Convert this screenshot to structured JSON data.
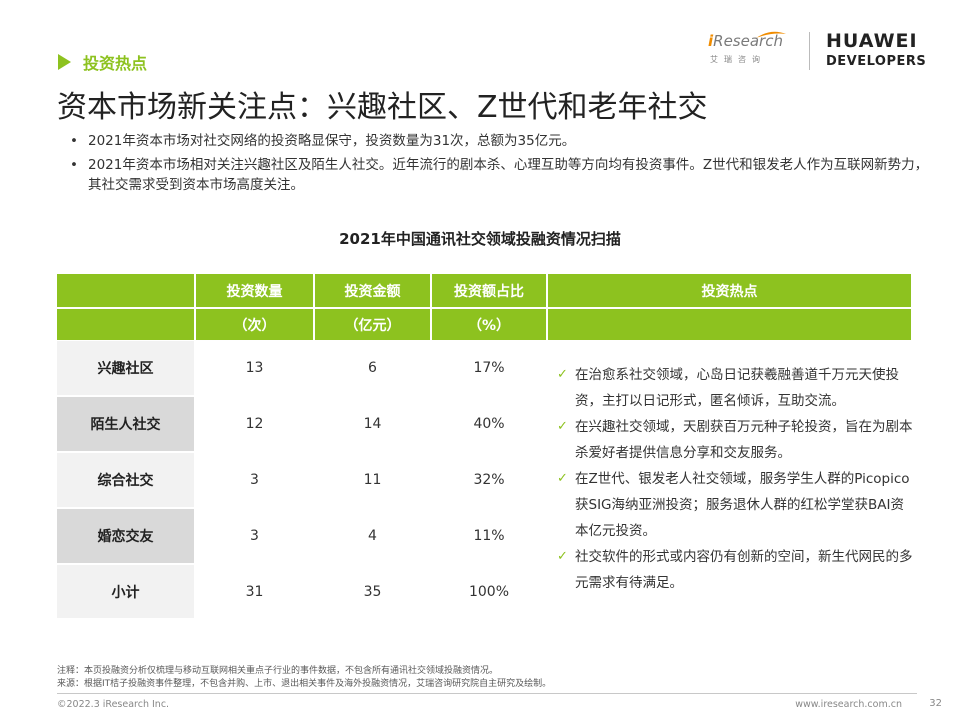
{
  "section": {
    "label": "投资热点"
  },
  "logos": {
    "iresearch": {
      "i": "i",
      "rest": "Research",
      "sub": "艾瑞咨询"
    },
    "huawei": {
      "line1": "HUAWEI",
      "line2": "DEVELOPERS"
    }
  },
  "page_title": "资本市场新关注点：兴趣社区、Z世代和老年社交",
  "bullets": [
    "2021年资本市场对社交网络的投资略显保守，投资数量为31次，总额为35亿元。",
    "2021年资本市场相对关注兴趣社区及陌生人社交。近年流行的剧本杀、心理互助等方向均有投资事件。Z世代和银发老人作为互联网新势力，其社交需求受到资本市场高度关注。"
  ],
  "table": {
    "title": "2021年中国通讯社交领域投融资情况扫描",
    "headers": [
      "投资数量",
      "投资金额",
      "投资额占比",
      "投资热点"
    ],
    "units": [
      "（次）",
      "（亿元）",
      "（%）"
    ],
    "rows": [
      {
        "label": "兴趣社区",
        "count": "13",
        "amount": "6",
        "share": "17%"
      },
      {
        "label": "陌生人社交",
        "count": "12",
        "amount": "14",
        "share": "40%"
      },
      {
        "label": "综合社交",
        "count": "3",
        "amount": "11",
        "share": "32%"
      },
      {
        "label": "婚恋交友",
        "count": "3",
        "amount": "4",
        "share": "11%"
      },
      {
        "label": "小计",
        "count": "31",
        "amount": "35",
        "share": "100%"
      }
    ],
    "hotspots": [
      "在治愈系社交领域，心岛日记获羲融善道千万元天使投资，主打以日记形式，匿名倾诉，互助交流。",
      "在兴趣社交领域，天剧获百万元种子轮投资，旨在为剧本杀爱好者提供信息分享和交友服务。",
      "在Z世代、银发老人社交领域，服务学生人群的Picopico获SIG海纳亚洲投资；服务退休人群的红松学堂获BAI资本亿元投资。",
      "社交软件的形式或内容仍有创新的空间，新生代网民的多元需求有待满足。"
    ]
  },
  "notes": {
    "note": "注释：本页投融资分析仅梳理与移动互联网相关重点子行业的事件数据，不包含所有通讯社交领域投融资情况。",
    "source": "来源：根据IT桔子投融资事件整理，不包含并购、上市、退出相关事件及海外投融资情况，艾瑞咨询研究院自主研究及绘制。"
  },
  "footer": {
    "copyright": "©2022.3 iResearch Inc.",
    "website": "www.iresearch.com.cn",
    "page": "32"
  },
  "colors": {
    "accent": "#8dc21f",
    "row_light": "#f2f2f2",
    "row_dark": "#d9d9d9"
  }
}
